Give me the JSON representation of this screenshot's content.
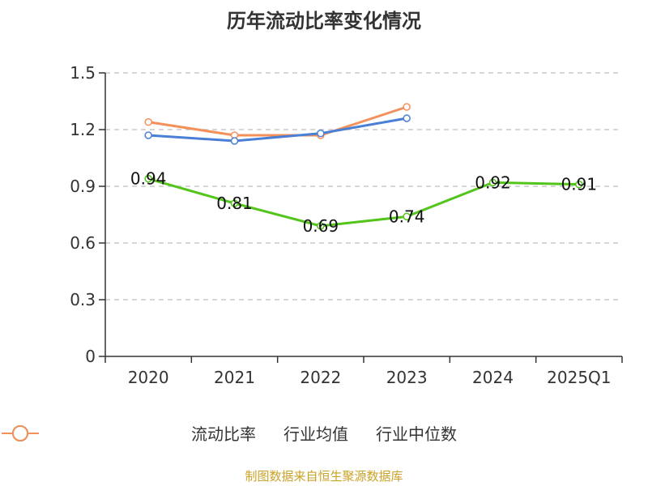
{
  "chart_data": {
    "type": "line",
    "title": "历年流动比率变化情况",
    "categories": [
      "2020",
      "2021",
      "2022",
      "2023",
      "2024",
      "2025Q1"
    ],
    "y_ticks": [
      "0",
      "0.3",
      "0.6",
      "0.9",
      "1.2",
      "1.5"
    ],
    "ylim": [
      0,
      1.5
    ],
    "grid": true,
    "legend_position": "bottom",
    "series": [
      {
        "name": "流动比率",
        "color": "#52c41a",
        "values": [
          0.94,
          0.81,
          0.69,
          0.74,
          0.92,
          0.91
        ],
        "labels": [
          "0.94",
          "0.81",
          "0.69",
          "0.74",
          "0.92",
          "0.91"
        ]
      },
      {
        "name": "行业均值",
        "color": "#4a7fd8",
        "values": [
          1.17,
          1.14,
          1.18,
          1.26,
          null,
          null
        ]
      },
      {
        "name": "行业中位数",
        "color": "#f4905a",
        "values": [
          1.24,
          1.17,
          1.17,
          1.32,
          null,
          null
        ]
      }
    ]
  },
  "source": "制图数据来自恒生聚源数据库"
}
